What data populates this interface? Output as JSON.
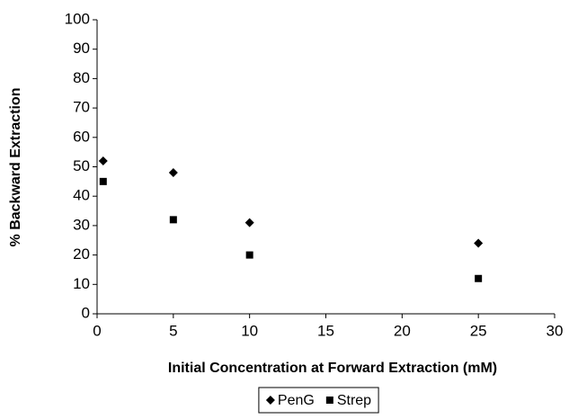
{
  "chart_data": {
    "type": "scatter",
    "x_label": "Initial Concentration at Forward Extraction (mM)",
    "y_label": "% Backward Extraction",
    "series": [
      {
        "name": "PenG",
        "color": "#000000",
        "marker": "diamond",
        "x": [
          0.4,
          5,
          10,
          25
        ],
        "values": [
          52,
          48,
          31,
          24
        ]
      },
      {
        "name": "Strep",
        "color": "#000000",
        "marker": "square",
        "x": [
          0.4,
          5,
          10,
          25
        ],
        "values": [
          45,
          32,
          20,
          12
        ]
      }
    ],
    "xlim": [
      0,
      30
    ],
    "xticks": [
      0,
      5,
      10,
      15,
      20,
      25,
      30
    ],
    "ylim": [
      0,
      100
    ],
    "yticks": [
      0,
      10,
      20,
      30,
      40,
      50,
      60,
      70,
      80,
      90,
      100
    ],
    "grid": false,
    "legend": "bottom"
  }
}
